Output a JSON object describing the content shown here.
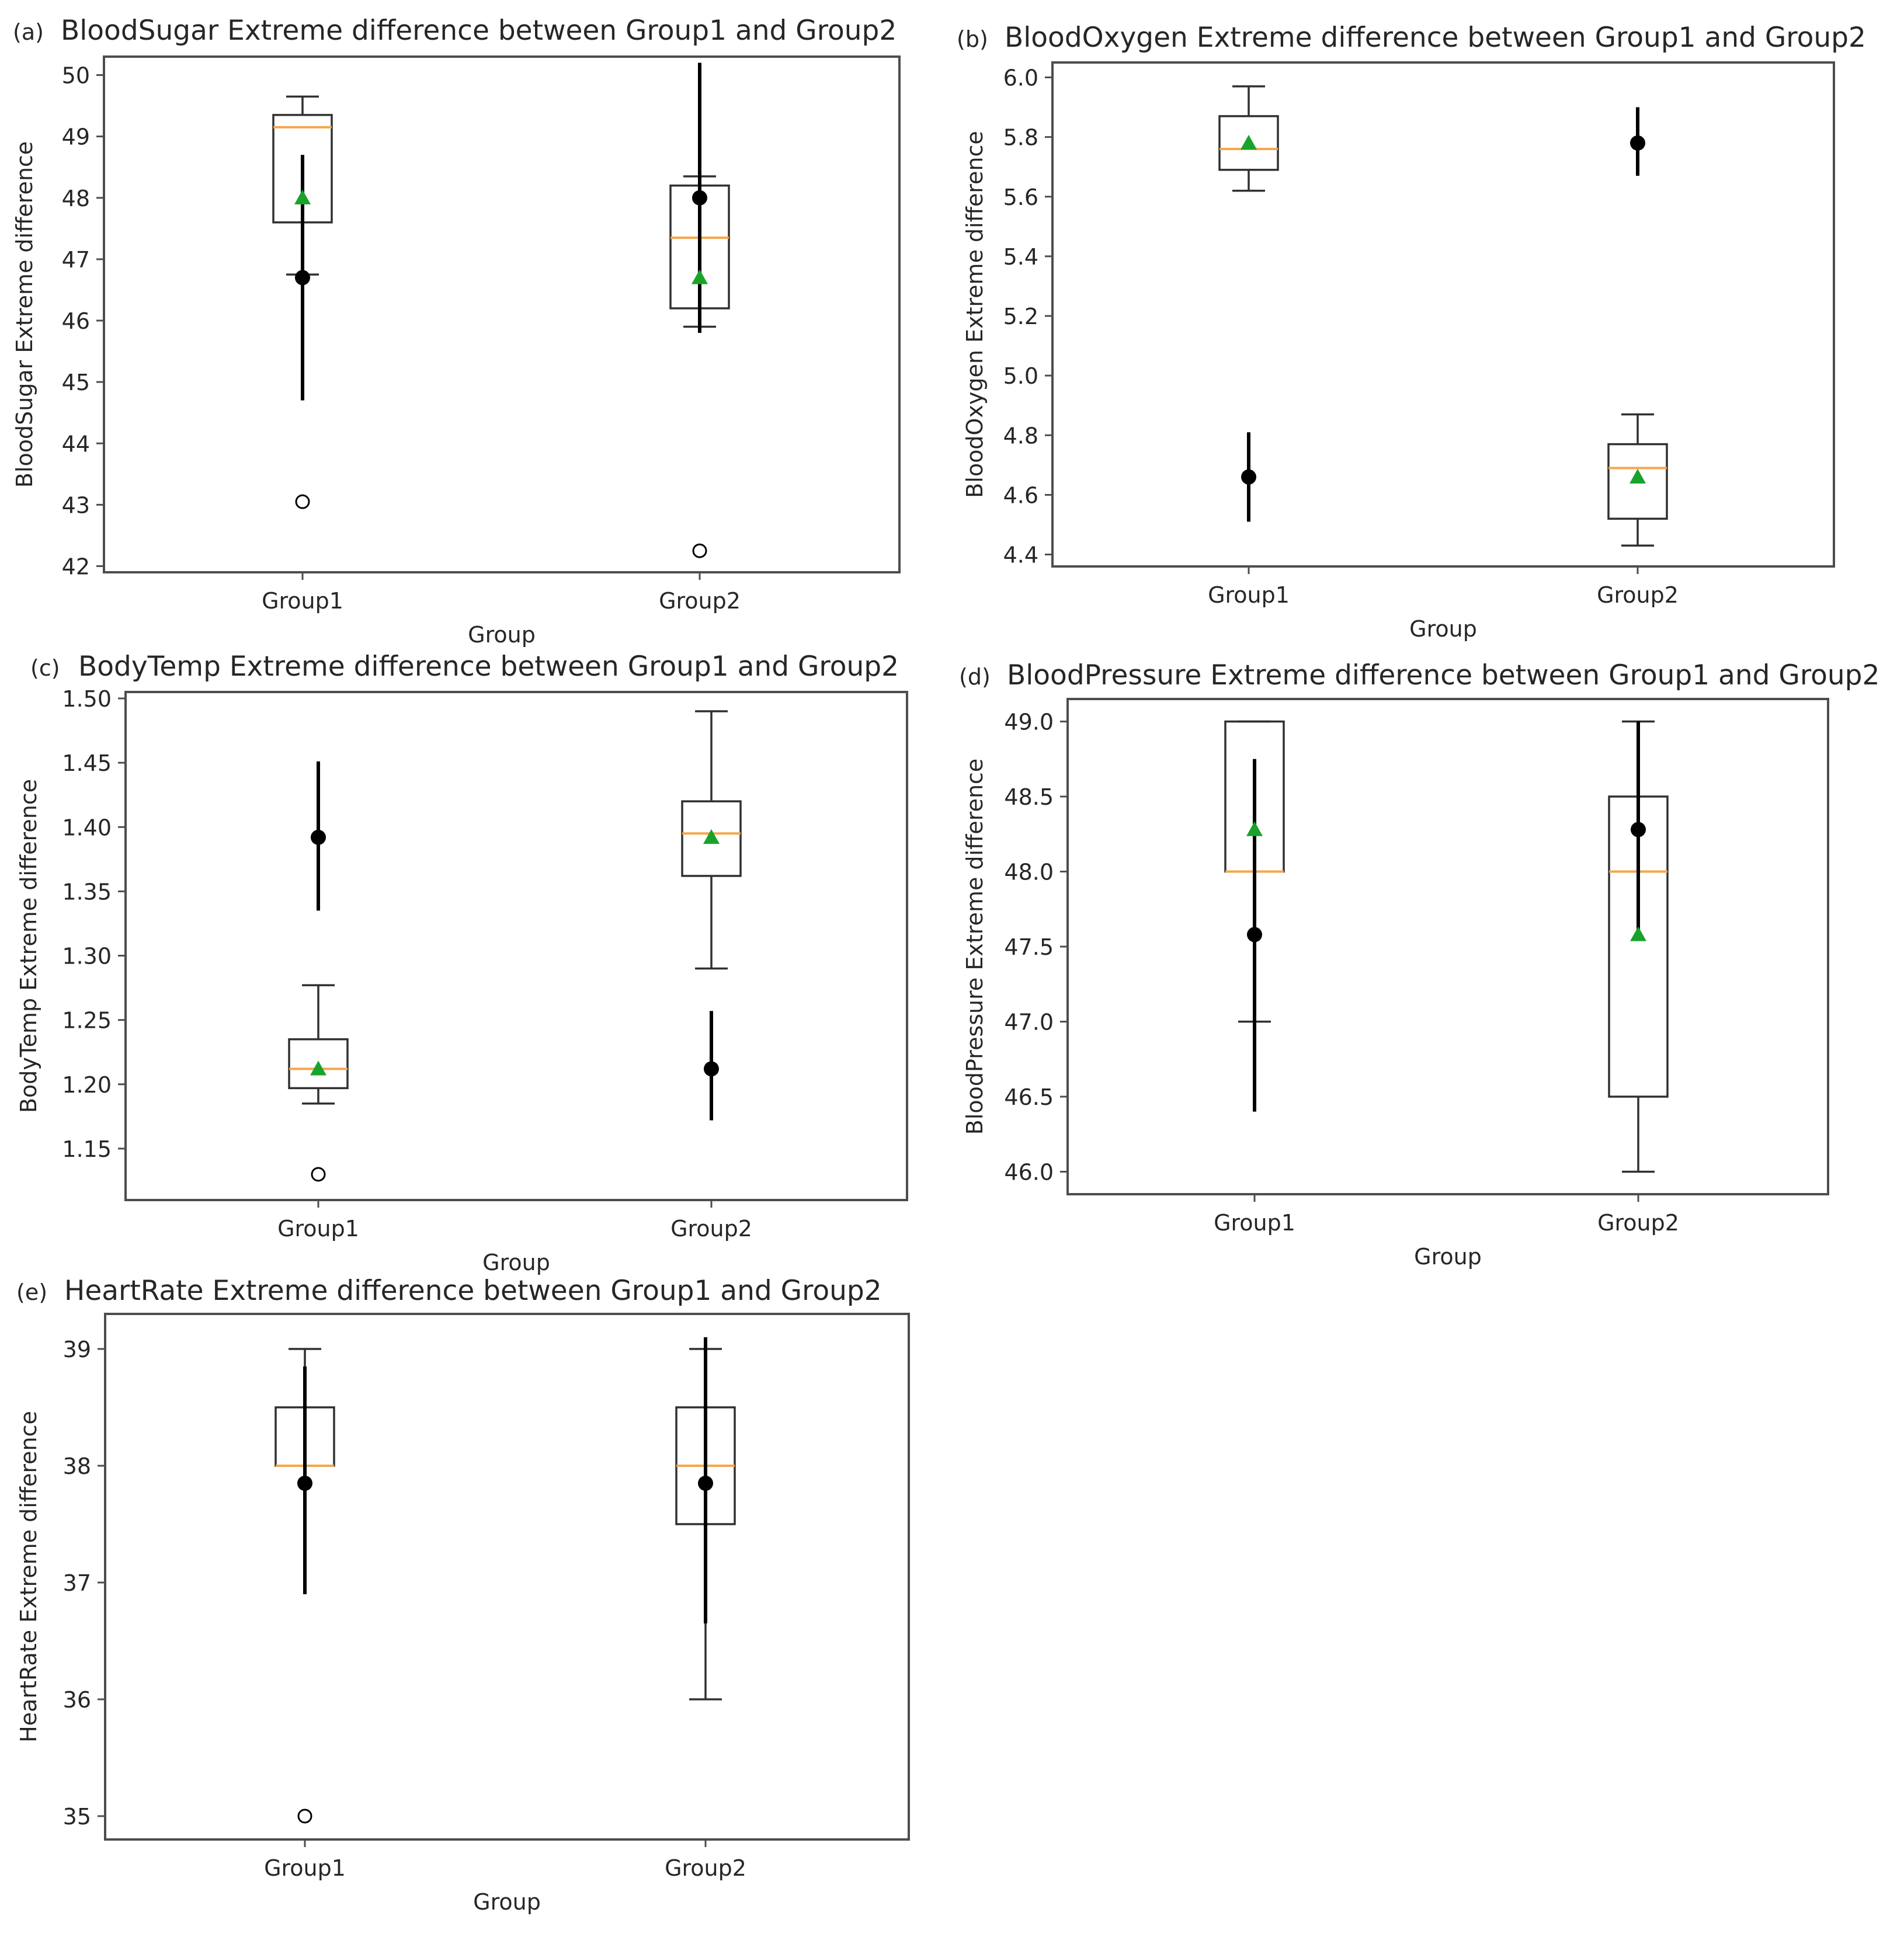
{
  "colors": {
    "frame": "#4d4d4d",
    "box": "#303030",
    "whisker": "#303030",
    "median": "#f5a64a",
    "mean_marker": "#1aa32a",
    "point": "#000000",
    "errorbar": "#000000",
    "outlier": "#000000",
    "text": "#262626"
  },
  "chart_data": [
    {
      "panel": "(a)",
      "type": "boxplot",
      "title": "BloodSugar Extreme difference between Group1 and Group2",
      "xlabel": "Group",
      "ylabel": "BloodSugar Extreme difference",
      "categories": [
        "Group1",
        "Group2"
      ],
      "ylim": [
        41.9,
        50.3
      ],
      "yticks": [
        42,
        43,
        44,
        45,
        46,
        47,
        48,
        49,
        50
      ],
      "ytick_labels": [
        "42",
        "43",
        "44",
        "45",
        "46",
        "47",
        "48",
        "49",
        "50"
      ],
      "boxes": [
        {
          "whisker_low": 46.75,
          "q1": 47.6,
          "median": 49.15,
          "q3": 49.35,
          "whisker_high": 49.65,
          "mean": 48.0,
          "outliers": [
            43.05
          ]
        },
        {
          "whisker_low": 45.9,
          "q1": 46.2,
          "median": 47.35,
          "q3": 48.2,
          "whisker_high": 48.35,
          "mean": 46.7,
          "outliers": [
            42.25
          ]
        }
      ],
      "points": [
        {
          "value": 46.7,
          "err_low": 44.7,
          "err_high": 48.7
        },
        {
          "value": 48.0,
          "err_low": 45.8,
          "err_high": 50.2
        }
      ]
    },
    {
      "panel": "(b)",
      "type": "boxplot",
      "title": "BloodOxygen Extreme difference between Group1 and Group2",
      "xlabel": "Group",
      "ylabel": "BloodOxygen Extreme difference",
      "categories": [
        "Group1",
        "Group2"
      ],
      "ylim": [
        4.36,
        6.05
      ],
      "yticks": [
        4.4,
        4.6,
        4.8,
        5.0,
        5.2,
        5.4,
        5.6,
        5.8,
        6.0
      ],
      "ytick_labels": [
        "4.4",
        "4.6",
        "4.8",
        "5.0",
        "5.2",
        "5.4",
        "5.6",
        "5.8",
        "6.0"
      ],
      "boxes": [
        {
          "whisker_low": 5.62,
          "q1": 5.69,
          "median": 5.76,
          "q3": 5.87,
          "whisker_high": 5.97,
          "mean": 5.78,
          "outliers": []
        },
        {
          "whisker_low": 4.43,
          "q1": 4.52,
          "median": 4.69,
          "q3": 4.77,
          "whisker_high": 4.87,
          "mean": 4.66,
          "outliers": []
        }
      ],
      "points": [
        {
          "value": 4.66,
          "err_low": 4.51,
          "err_high": 4.81
        },
        {
          "value": 5.78,
          "err_low": 5.67,
          "err_high": 5.9
        }
      ]
    },
    {
      "panel": "(c)",
      "type": "boxplot",
      "title": "BodyTemp Extreme difference between Group1 and Group2",
      "xlabel": "Group",
      "ylabel": "BodyTemp Extreme difference",
      "categories": [
        "Group1",
        "Group2"
      ],
      "ylim": [
        1.11,
        1.505
      ],
      "yticks": [
        1.15,
        1.2,
        1.25,
        1.3,
        1.35,
        1.4,
        1.45,
        1.5
      ],
      "ytick_labels": [
        "1.15",
        "1.20",
        "1.25",
        "1.30",
        "1.35",
        "1.40",
        "1.45",
        "1.50"
      ],
      "boxes": [
        {
          "whisker_low": 1.185,
          "q1": 1.197,
          "median": 1.212,
          "q3": 1.235,
          "whisker_high": 1.277,
          "mean": 1.212,
          "outliers": [
            1.13
          ]
        },
        {
          "whisker_low": 1.29,
          "q1": 1.362,
          "median": 1.395,
          "q3": 1.42,
          "whisker_high": 1.49,
          "mean": 1.392,
          "outliers": []
        }
      ],
      "points": [
        {
          "value": 1.392,
          "err_low": 1.335,
          "err_high": 1.451
        },
        {
          "value": 1.212,
          "err_low": 1.172,
          "err_high": 1.257
        }
      ]
    },
    {
      "panel": "(d)",
      "type": "boxplot",
      "title": "BloodPressure Extreme difference between Group1 and Group2",
      "xlabel": "Group",
      "ylabel": "BloodPressure Extreme difference",
      "categories": [
        "Group1",
        "Group2"
      ],
      "ylim": [
        45.85,
        49.15
      ],
      "yticks": [
        46.0,
        46.5,
        47.0,
        47.5,
        48.0,
        48.5,
        49.0
      ],
      "ytick_labels": [
        "46.0",
        "46.5",
        "47.0",
        "47.5",
        "48.0",
        "48.5",
        "49.0"
      ],
      "boxes": [
        {
          "whisker_low": 47.0,
          "q1": 48.0,
          "median": 48.0,
          "q3": 49.0,
          "whisker_high": 49.0,
          "mean": 48.28,
          "outliers": []
        },
        {
          "whisker_low": 46.0,
          "q1": 46.5,
          "median": 48.0,
          "q3": 48.5,
          "whisker_high": 49.0,
          "mean": 47.58,
          "outliers": []
        }
      ],
      "points": [
        {
          "value": 47.58,
          "err_low": 46.4,
          "err_high": 48.75
        },
        {
          "value": 48.28,
          "err_low": 47.6,
          "err_high": 49.0
        }
      ]
    },
    {
      "panel": "(e)",
      "type": "boxplot",
      "title": "HeartRate Extreme difference between Group1 and Group2",
      "xlabel": "Group",
      "ylabel": "HeartRate Extreme difference",
      "categories": [
        "Group1",
        "Group2"
      ],
      "ylim": [
        34.8,
        39.3
      ],
      "yticks": [
        35,
        36,
        37,
        38,
        39
      ],
      "ytick_labels": [
        "35",
        "36",
        "37",
        "38",
        "39"
      ],
      "boxes": [
        {
          "whisker_low": 38.0,
          "q1": 38.0,
          "median": 38.0,
          "q3": 38.5,
          "whisker_high": 39.0,
          "mean": null,
          "outliers": [
            35.0
          ]
        },
        {
          "whisker_low": 36.0,
          "q1": 37.5,
          "median": 38.0,
          "q3": 38.5,
          "whisker_high": 39.0,
          "mean": null,
          "outliers": []
        }
      ],
      "points": [
        {
          "value": 37.85,
          "err_low": 36.9,
          "err_high": 38.85
        },
        {
          "value": 37.85,
          "err_low": 36.65,
          "err_high": 39.1
        }
      ]
    }
  ]
}
